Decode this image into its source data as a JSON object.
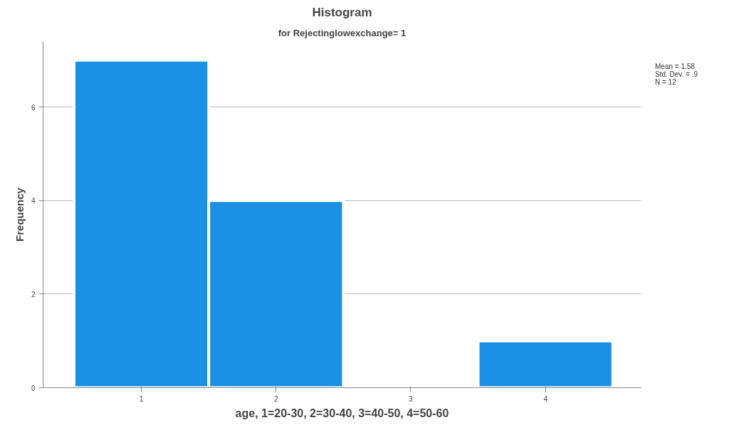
{
  "chart_data": {
    "type": "histogram",
    "title": "Histogram",
    "subtitle": "for Rejectinglowexchange= 1",
    "xlabel": "age, 1=20-30, 2=30-40, 3=40-50, 4=50-60",
    "ylabel": "Frequency",
    "bins": [
      0.5,
      1.5,
      2.5,
      3.5,
      4.5
    ],
    "values": [
      7,
      4,
      0,
      1
    ],
    "color": "#1a8fe3",
    "xlim": [
      0.27,
      4.71
    ],
    "xticks": [
      1,
      2,
      3,
      4
    ],
    "ylim": [
      0,
      7.4
    ],
    "yticks": [
      0,
      2,
      4,
      6
    ],
    "grid": "y",
    "annotations": [
      "Mean = 1.58",
      "Std. Dev. = .9",
      "N = 12"
    ]
  }
}
